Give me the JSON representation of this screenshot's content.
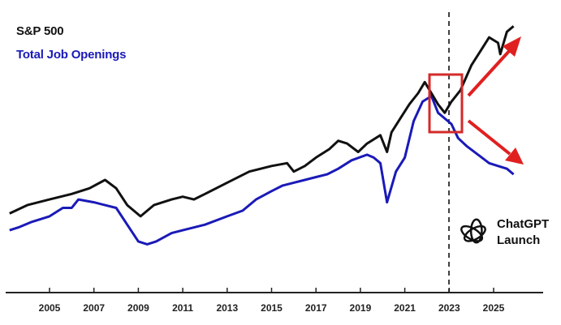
{
  "legend": {
    "sp500": {
      "label": "S&P 500",
      "color": "#111111"
    },
    "job_openings": {
      "label": "Total Job Openings",
      "color": "#1a1ab8"
    }
  },
  "annotation": {
    "line1": "ChatGPT",
    "line2": "Launch",
    "icon": "openai-logo-icon",
    "highlight_box_color": "#d42a2a",
    "arrow_color": "#e02020"
  },
  "x_axis": {
    "ticks": [
      "2005",
      "2007",
      "2009",
      "2011",
      "2013",
      "2015",
      "2017",
      "2019",
      "2021",
      "2023",
      "2025"
    ]
  },
  "chart_data": {
    "type": "line",
    "title": "",
    "xlabel": "",
    "ylabel": "",
    "x_range": [
      2003.2,
      2027.2
    ],
    "y_axis": "unlabeled (relative index, 0-100 scale of plot height)",
    "grid": false,
    "legend_position": "top-left",
    "vertical_marker": {
      "x": 2022.9,
      "label": "ChatGPT Launch",
      "style": "dashed"
    },
    "highlight_box": {
      "x_start": 2022.0,
      "x_end": 2023.5
    },
    "series": [
      {
        "name": "S&P 500",
        "color": "#111111",
        "points": [
          [
            2003.2,
            28
          ],
          [
            2004.0,
            31
          ],
          [
            2005.0,
            33
          ],
          [
            2006.0,
            35
          ],
          [
            2006.8,
            37
          ],
          [
            2007.5,
            40
          ],
          [
            2008.0,
            37
          ],
          [
            2008.5,
            31
          ],
          [
            2009.1,
            27
          ],
          [
            2009.7,
            31
          ],
          [
            2010.5,
            33
          ],
          [
            2011.0,
            34
          ],
          [
            2011.5,
            33
          ],
          [
            2012.0,
            35
          ],
          [
            2013.0,
            39
          ],
          [
            2014.0,
            43
          ],
          [
            2015.0,
            45
          ],
          [
            2015.7,
            46
          ],
          [
            2016.0,
            43
          ],
          [
            2016.5,
            45
          ],
          [
            2017.0,
            48
          ],
          [
            2017.6,
            51
          ],
          [
            2018.0,
            54
          ],
          [
            2018.4,
            53
          ],
          [
            2018.9,
            50
          ],
          [
            2019.3,
            53
          ],
          [
            2019.9,
            56
          ],
          [
            2020.2,
            50
          ],
          [
            2020.4,
            57
          ],
          [
            2020.8,
            62
          ],
          [
            2021.2,
            67
          ],
          [
            2021.6,
            71
          ],
          [
            2021.9,
            75
          ],
          [
            2022.2,
            71
          ],
          [
            2022.5,
            67
          ],
          [
            2022.8,
            64
          ],
          [
            2023.1,
            68
          ],
          [
            2023.5,
            72
          ],
          [
            2024.0,
            81
          ],
          [
            2024.4,
            86
          ],
          [
            2024.8,
            91
          ],
          [
            2025.2,
            89
          ],
          [
            2025.3,
            85
          ],
          [
            2025.6,
            93
          ],
          [
            2025.9,
            95
          ]
        ]
      },
      {
        "name": "Total Job Openings",
        "color": "#1a1ab8",
        "points": [
          [
            2003.2,
            22
          ],
          [
            2003.6,
            23
          ],
          [
            2004.2,
            25
          ],
          [
            2005.0,
            27
          ],
          [
            2005.6,
            30
          ],
          [
            2006.0,
            30
          ],
          [
            2006.3,
            33
          ],
          [
            2007.0,
            32
          ],
          [
            2007.5,
            31
          ],
          [
            2008.0,
            30
          ],
          [
            2008.5,
            24
          ],
          [
            2009.0,
            18
          ],
          [
            2009.4,
            17
          ],
          [
            2009.8,
            18
          ],
          [
            2010.5,
            21
          ],
          [
            2011.0,
            22
          ],
          [
            2012.0,
            24
          ],
          [
            2013.0,
            27
          ],
          [
            2013.7,
            29
          ],
          [
            2014.3,
            33
          ],
          [
            2015.0,
            36
          ],
          [
            2015.5,
            38
          ],
          [
            2016.0,
            39
          ],
          [
            2016.5,
            40
          ],
          [
            2017.0,
            41
          ],
          [
            2017.5,
            42
          ],
          [
            2018.0,
            44
          ],
          [
            2018.6,
            47
          ],
          [
            2019.3,
            49
          ],
          [
            2019.6,
            48
          ],
          [
            2019.9,
            46
          ],
          [
            2020.2,
            32
          ],
          [
            2020.6,
            43
          ],
          [
            2021.0,
            48
          ],
          [
            2021.4,
            61
          ],
          [
            2021.8,
            68
          ],
          [
            2022.2,
            70
          ],
          [
            2022.5,
            64
          ],
          [
            2022.8,
            62
          ],
          [
            2023.1,
            60
          ],
          [
            2023.4,
            55
          ],
          [
            2023.8,
            52
          ],
          [
            2024.3,
            49
          ],
          [
            2024.8,
            46
          ],
          [
            2025.2,
            45
          ],
          [
            2025.6,
            44
          ],
          [
            2025.9,
            42
          ]
        ]
      }
    ]
  }
}
